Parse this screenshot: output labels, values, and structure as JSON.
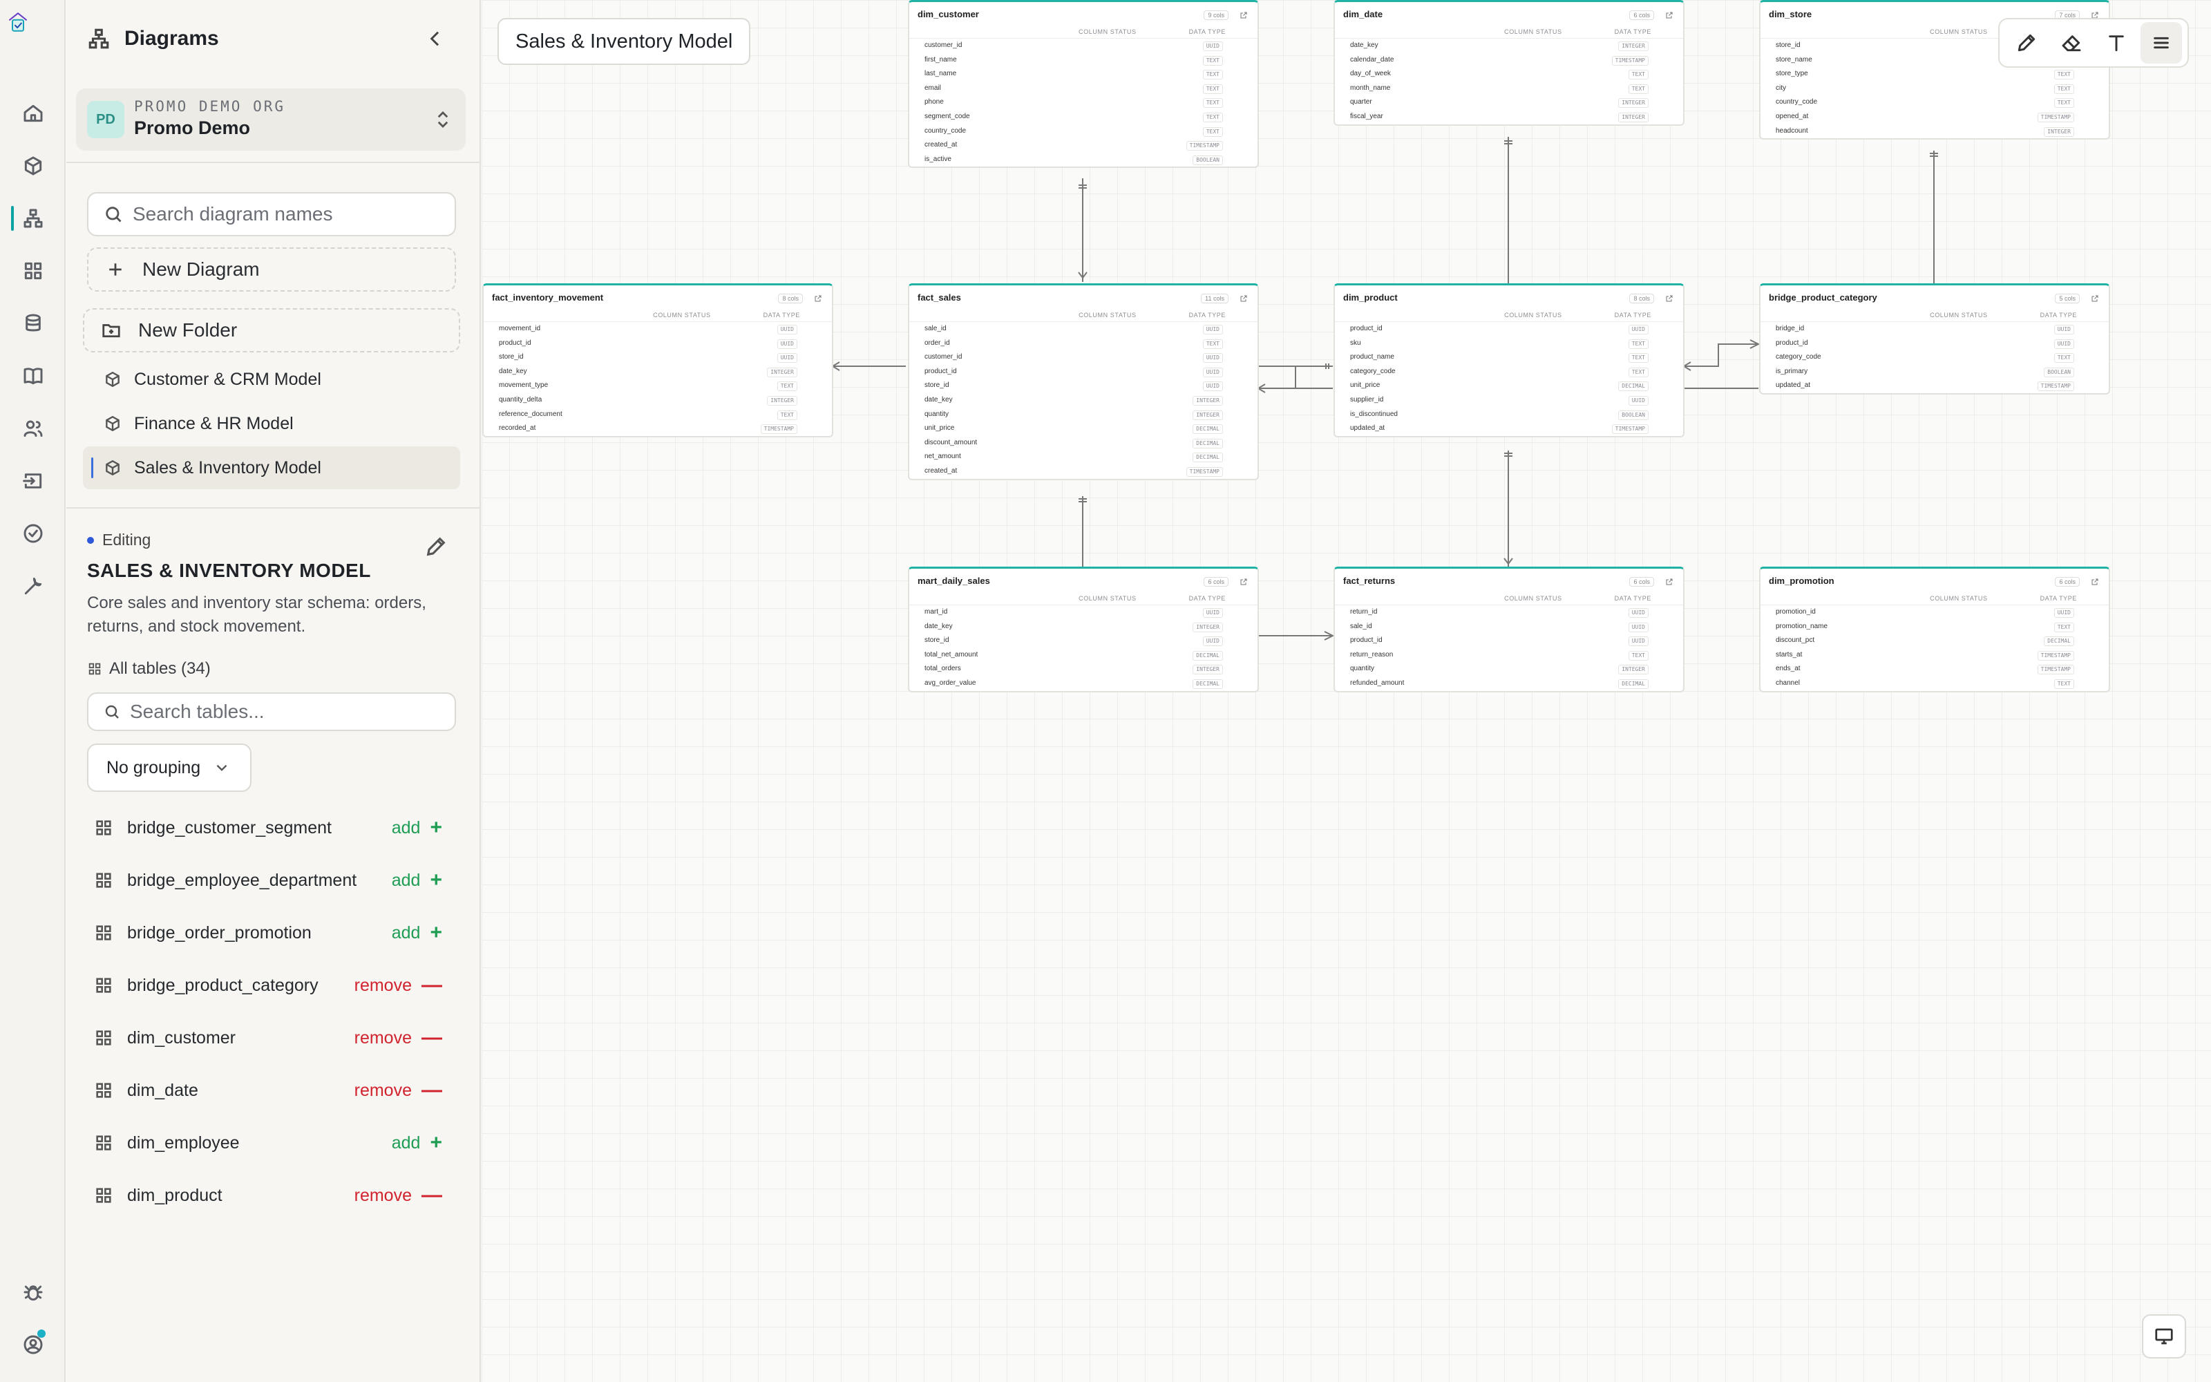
{
  "sidebar": {
    "title": "Diagrams",
    "org": {
      "badge": "PD",
      "sub": "PROMO DEMO ORG",
      "name": "Promo Demo"
    },
    "search_placeholder": "Search diagram names",
    "new_diagram": "New Diagram",
    "new_folder": "New Folder",
    "diagrams": [
      {
        "label": "Customer & CRM Model"
      },
      {
        "label": "Finance & HR Model"
      },
      {
        "label": "Sales & Inventory Model"
      }
    ],
    "editing_label": "Editing",
    "model_title": "SALES & INVENTORY MODEL",
    "model_desc": "Core sales and inventory star schema: orders, returns, and stock movement.",
    "all_tables": "All tables (34)",
    "table_search_placeholder": "Search tables...",
    "grouping": "No grouping",
    "tables": [
      {
        "name": "bridge_customer_segment",
        "action": "add",
        "symbol": "+"
      },
      {
        "name": "bridge_employee_department",
        "action": "add",
        "symbol": "+"
      },
      {
        "name": "bridge_order_promotion",
        "action": "add",
        "symbol": "+"
      },
      {
        "name": "bridge_product_category",
        "action": "remove",
        "symbol": "—"
      },
      {
        "name": "dim_customer",
        "action": "remove",
        "symbol": "—"
      },
      {
        "name": "dim_date",
        "action": "remove",
        "symbol": "—"
      },
      {
        "name": "dim_employee",
        "action": "add",
        "symbol": "+"
      },
      {
        "name": "dim_product",
        "action": "remove",
        "symbol": "—"
      }
    ]
  },
  "canvas": {
    "diagram_name": "Sales & Inventory Model",
    "col_status_label": "COLUMN STATUS",
    "data_type_label": "DATA TYPE",
    "tables": {
      "dim_customer": {
        "name": "dim_customer",
        "count": "9 cols",
        "cols": [
          [
            "customer_id",
            "UUID"
          ],
          [
            "first_name",
            "TEXT"
          ],
          [
            "last_name",
            "TEXT"
          ],
          [
            "email",
            "TEXT"
          ],
          [
            "phone",
            "TEXT"
          ],
          [
            "segment_code",
            "TEXT"
          ],
          [
            "country_code",
            "TEXT"
          ],
          [
            "created_at",
            "TIMESTAMP"
          ],
          [
            "is_active",
            "BOOLEAN"
          ]
        ]
      },
      "dim_date": {
        "name": "dim_date",
        "count": "6 cols",
        "cols": [
          [
            "date_key",
            "INTEGER"
          ],
          [
            "calendar_date",
            "TIMESTAMP"
          ],
          [
            "day_of_week",
            "TEXT"
          ],
          [
            "month_name",
            "TEXT"
          ],
          [
            "quarter",
            "INTEGER"
          ],
          [
            "fiscal_year",
            "INTEGER"
          ]
        ]
      },
      "dim_store": {
        "name": "dim_store",
        "count": "7 cols",
        "cols": [
          [
            "store_id",
            "UUID"
          ],
          [
            "store_name",
            "TEXT"
          ],
          [
            "store_type",
            "TEXT"
          ],
          [
            "city",
            "TEXT"
          ],
          [
            "country_code",
            "TEXT"
          ],
          [
            "opened_at",
            "TIMESTAMP"
          ],
          [
            "headcount",
            "INTEGER"
          ]
        ]
      },
      "fact_inventory_movement": {
        "name": "fact_inventory_movement",
        "count": "8 cols",
        "cols": [
          [
            "movement_id",
            "UUID"
          ],
          [
            "product_id",
            "UUID"
          ],
          [
            "store_id",
            "UUID"
          ],
          [
            "date_key",
            "INTEGER"
          ],
          [
            "movement_type",
            "TEXT"
          ],
          [
            "quantity_delta",
            "INTEGER"
          ],
          [
            "reference_document",
            "TEXT"
          ],
          [
            "recorded_at",
            "TIMESTAMP"
          ]
        ]
      },
      "fact_sales": {
        "name": "fact_sales",
        "count": "11 cols",
        "cols": [
          [
            "sale_id",
            "UUID"
          ],
          [
            "order_id",
            "TEXT"
          ],
          [
            "customer_id",
            "UUID"
          ],
          [
            "product_id",
            "UUID"
          ],
          [
            "store_id",
            "UUID"
          ],
          [
            "date_key",
            "INTEGER"
          ],
          [
            "quantity",
            "INTEGER"
          ],
          [
            "unit_price",
            "DECIMAL"
          ],
          [
            "discount_amount",
            "DECIMAL"
          ],
          [
            "net_amount",
            "DECIMAL"
          ],
          [
            "created_at",
            "TIMESTAMP"
          ]
        ]
      },
      "dim_product": {
        "name": "dim_product",
        "count": "8 cols",
        "cols": [
          [
            "product_id",
            "UUID"
          ],
          [
            "sku",
            "TEXT"
          ],
          [
            "product_name",
            "TEXT"
          ],
          [
            "category_code",
            "TEXT"
          ],
          [
            "unit_price",
            "DECIMAL"
          ],
          [
            "supplier_id",
            "UUID"
          ],
          [
            "is_discontinued",
            "BOOLEAN"
          ],
          [
            "updated_at",
            "TIMESTAMP"
          ]
        ]
      },
      "bridge_product_category": {
        "name": "bridge_product_category",
        "count": "5 cols",
        "cols": [
          [
            "bridge_id",
            "UUID"
          ],
          [
            "product_id",
            "UUID"
          ],
          [
            "category_code",
            "TEXT"
          ],
          [
            "is_primary",
            "BOOLEAN"
          ],
          [
            "updated_at",
            "TIMESTAMP"
          ]
        ]
      },
      "mart_daily_sales": {
        "name": "mart_daily_sales",
        "count": "6 cols",
        "cols": [
          [
            "mart_id",
            "UUID"
          ],
          [
            "date_key",
            "INTEGER"
          ],
          [
            "store_id",
            "UUID"
          ],
          [
            "total_net_amount",
            "DECIMAL"
          ],
          [
            "total_orders",
            "INTEGER"
          ],
          [
            "avg_order_value",
            "DECIMAL"
          ]
        ]
      },
      "fact_returns": {
        "name": "fact_returns",
        "count": "6 cols",
        "cols": [
          [
            "return_id",
            "UUID"
          ],
          [
            "sale_id",
            "UUID"
          ],
          [
            "product_id",
            "UUID"
          ],
          [
            "return_reason",
            "TEXT"
          ],
          [
            "quantity",
            "INTEGER"
          ],
          [
            "refunded_amount",
            "DECIMAL"
          ]
        ]
      },
      "dim_promotion": {
        "name": "dim_promotion",
        "count": "6 cols",
        "cols": [
          [
            "promotion_id",
            "UUID"
          ],
          [
            "promotion_name",
            "TEXT"
          ],
          [
            "discount_pct",
            "DECIMAL"
          ],
          [
            "starts_at",
            "TIMESTAMP"
          ],
          [
            "ends_at",
            "TIMESTAMP"
          ],
          [
            "channel",
            "TEXT"
          ]
        ]
      }
    }
  },
  "toolbar": {
    "items": [
      "pencil-icon",
      "eraser-icon",
      "text-icon",
      "menu-icon"
    ]
  },
  "colors": {
    "accent": "#1fb2a6",
    "add": "#1f9d55",
    "remove": "#d1242f",
    "active_dot": "#2d58d9"
  }
}
